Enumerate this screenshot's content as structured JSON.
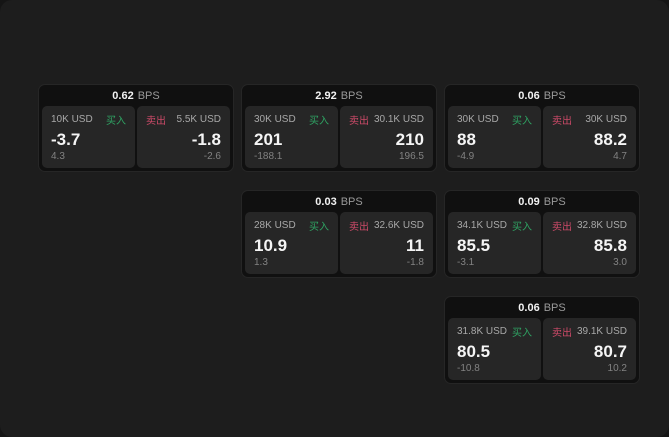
{
  "labels": {
    "bps_unit": "BPS",
    "buy": "买入",
    "sell": "卖出"
  },
  "colors": {
    "buy": "#2fa363",
    "sell": "#cc4a68",
    "window_bg": "#1d1d1d",
    "card_bg": "#101010",
    "panel_bg": "#262626"
  },
  "cards": [
    {
      "bps": "0.62",
      "row": 1,
      "col": 1,
      "buy": {
        "amount": "10K USD",
        "value": "-3.7",
        "secondary": "4.3"
      },
      "sell": {
        "amount": "5.5K USD",
        "value": "-1.8",
        "secondary": "-2.6"
      }
    },
    {
      "bps": "2.92",
      "row": 1,
      "col": 2,
      "buy": {
        "amount": "30K USD",
        "value": "201",
        "secondary": "-188.1"
      },
      "sell": {
        "amount": "30.1K USD",
        "value": "210",
        "secondary": "196.5"
      }
    },
    {
      "bps": "0.06",
      "row": 1,
      "col": 3,
      "buy": {
        "amount": "30K USD",
        "value": "88",
        "secondary": "-4.9"
      },
      "sell": {
        "amount": "30K USD",
        "value": "88.2",
        "secondary": "4.7"
      }
    },
    {
      "bps": "0.03",
      "row": 2,
      "col": 2,
      "buy": {
        "amount": "28K USD",
        "value": "10.9",
        "secondary": "1.3"
      },
      "sell": {
        "amount": "32.6K USD",
        "value": "11",
        "secondary": "-1.8"
      }
    },
    {
      "bps": "0.09",
      "row": 2,
      "col": 3,
      "buy": {
        "amount": "34.1K USD",
        "value": "85.5",
        "secondary": "-3.1"
      },
      "sell": {
        "amount": "32.8K USD",
        "value": "85.8",
        "secondary": "3.0"
      }
    },
    {
      "bps": "0.06",
      "row": 3,
      "col": 3,
      "buy": {
        "amount": "31.8K USD",
        "value": "80.5",
        "secondary": "-10.8"
      },
      "sell": {
        "amount": "39.1K USD",
        "value": "80.7",
        "secondary": "10.2"
      }
    }
  ]
}
